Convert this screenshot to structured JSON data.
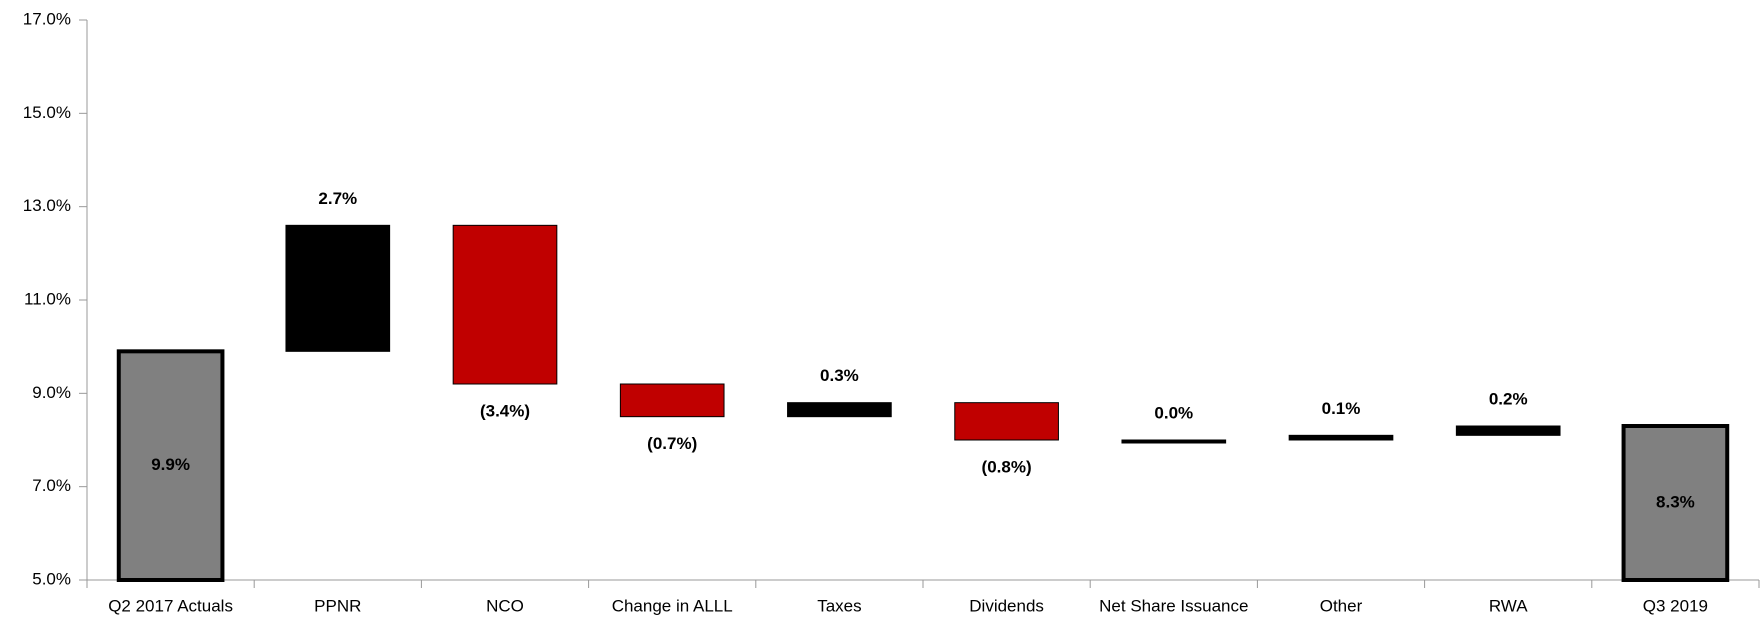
{
  "chart_data": {
    "type": "waterfall",
    "categories": [
      "Q2 2017 Actuals",
      "PPNR",
      "NCO",
      "Change in ALLL",
      "Taxes",
      "Dividends",
      "Net Share Issuance",
      "Other",
      "RWA",
      "Q3 2019"
    ],
    "values": [
      9.9,
      2.7,
      -3.4,
      -0.7,
      0.3,
      -0.8,
      0.0,
      0.1,
      0.2,
      8.3
    ],
    "value_labels": [
      "9.9%",
      "2.7%",
      "(3.4%)",
      "(0.7%)",
      "0.3%",
      "(0.8%)",
      "0.0%",
      "0.1%",
      "0.2%",
      "8.3%"
    ],
    "total_color": "#808080",
    "increase_color": "#000000",
    "decrease_color": "#c00000",
    "ylim": [
      5,
      17
    ],
    "yticks": [
      {
        "value": 5,
        "label": "5.0%"
      },
      {
        "value": 7,
        "label": "7.0%"
      },
      {
        "value": 9,
        "label": "9.0%"
      },
      {
        "value": 11,
        "label": "11.0%"
      },
      {
        "value": 13,
        "label": "13.0%"
      },
      {
        "value": 15,
        "label": "15.0%"
      },
      {
        "value": 17,
        "label": "17.0%"
      }
    ],
    "grid": false
  }
}
